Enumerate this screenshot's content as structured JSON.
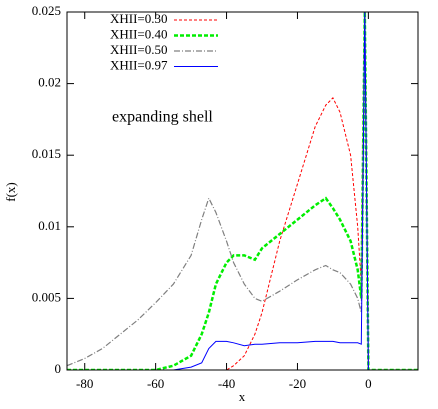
{
  "chart_data": {
    "type": "line",
    "xlabel": "x",
    "ylabel": "f(x)",
    "annotation": "expanding shell",
    "x": [
      -85,
      -80,
      -75,
      -70,
      -65,
      -60,
      -55,
      -50,
      -47,
      -45,
      -43,
      -40,
      -38,
      -35,
      -32,
      -30,
      -25,
      -20,
      -15,
      -12,
      -10,
      -8,
      -5,
      -3,
      -2,
      -1,
      0,
      5,
      14
    ],
    "series": [
      {
        "name": "XHII=0.30",
        "color": "#ff0000",
        "dash": "3,2",
        "width": 1,
        "values": [
          0,
          0,
          0,
          0,
          0,
          0,
          0,
          0,
          0,
          0,
          0,
          0,
          0.0003,
          0.001,
          0.0025,
          0.004,
          0.009,
          0.013,
          0.017,
          0.0185,
          0.019,
          0.018,
          0.015,
          0.01,
          0.006,
          0.025,
          0,
          0,
          0
        ]
      },
      {
        "name": "XHII=0.40",
        "color": "#00ee00",
        "dash": "4,2",
        "width": 2.5,
        "values": [
          0,
          0,
          0,
          0,
          0,
          0,
          0.0003,
          0.001,
          0.0025,
          0.004,
          0.006,
          0.0075,
          0.008,
          0.008,
          0.0077,
          0.0085,
          0.0095,
          0.0105,
          0.0115,
          0.012,
          0.0113,
          0.0105,
          0.009,
          0.007,
          0.005,
          0.025,
          0,
          0,
          0
        ]
      },
      {
        "name": "XHII=0.50",
        "color": "#808080",
        "dash": "6,2,1,2",
        "width": 1.2,
        "values": [
          0.0003,
          0.0008,
          0.0015,
          0.0025,
          0.0035,
          0.0047,
          0.006,
          0.008,
          0.0105,
          0.012,
          0.011,
          0.009,
          0.0075,
          0.006,
          0.005,
          0.0048,
          0.0055,
          0.0063,
          0.007,
          0.0073,
          0.007,
          0.0068,
          0.006,
          0.005,
          0.004,
          0.025,
          0,
          0,
          0
        ]
      },
      {
        "name": "XHII=0.97",
        "color": "#0000ff",
        "dash": "none",
        "width": 1,
        "values": [
          0,
          0,
          0,
          0,
          0,
          0,
          0,
          0.0002,
          0.0005,
          0.0015,
          0.002,
          0.002,
          0.0019,
          0.0017,
          0.0018,
          0.0018,
          0.0019,
          0.0019,
          0.002,
          0.002,
          0.002,
          0.0019,
          0.0019,
          0.0019,
          0.0018,
          0.025,
          0,
          0,
          0
        ]
      }
    ],
    "xlim": [
      -85,
      14
    ],
    "xticks": [
      -80,
      -60,
      -40,
      -20,
      0
    ],
    "ylim": [
      0,
      0.025
    ],
    "yticks": [
      0,
      0.005,
      0.01,
      0.015,
      0.02,
      0.025
    ]
  }
}
